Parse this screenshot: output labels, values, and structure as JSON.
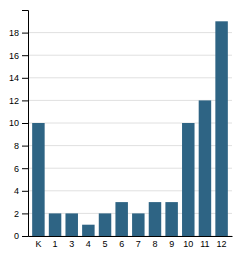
{
  "chart_data": {
    "type": "bar",
    "categories": [
      "K",
      "1",
      "3",
      "4",
      "5",
      "6",
      "7",
      "8",
      "9",
      "10",
      "11",
      "12"
    ],
    "values": [
      10,
      2,
      2,
      1,
      2,
      3,
      2,
      3,
      3,
      10,
      12,
      19
    ],
    "color": "#2e6484",
    "ylim": [
      0,
      20
    ],
    "yticks": [
      0,
      2,
      4,
      6,
      8,
      10,
      12,
      14,
      16,
      18
    ],
    "grid": true
  }
}
